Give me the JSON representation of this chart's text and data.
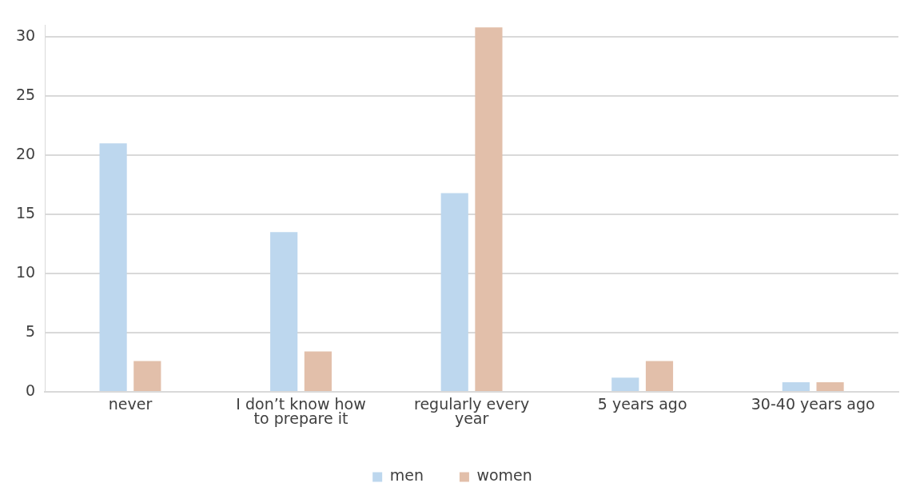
{
  "chart_data": {
    "type": "bar",
    "categories": [
      "never",
      "I don’t know how to prepare it",
      "regularly every year",
      "5 years ago",
      "30-40 years ago"
    ],
    "series": [
      {
        "name": "men",
        "color": "#bdd7ee",
        "values": [
          21,
          13.5,
          16.8,
          1.2,
          0.8
        ]
      },
      {
        "name": "women",
        "color": "#e2bfaa",
        "values": [
          2.6,
          3.4,
          30.8,
          2.6,
          0.8
        ]
      }
    ],
    "ylim": [
      0,
      31
    ],
    "yticks": [
      0,
      5,
      10,
      15,
      20,
      25,
      30
    ],
    "grid": "y",
    "legend": "bottom"
  }
}
